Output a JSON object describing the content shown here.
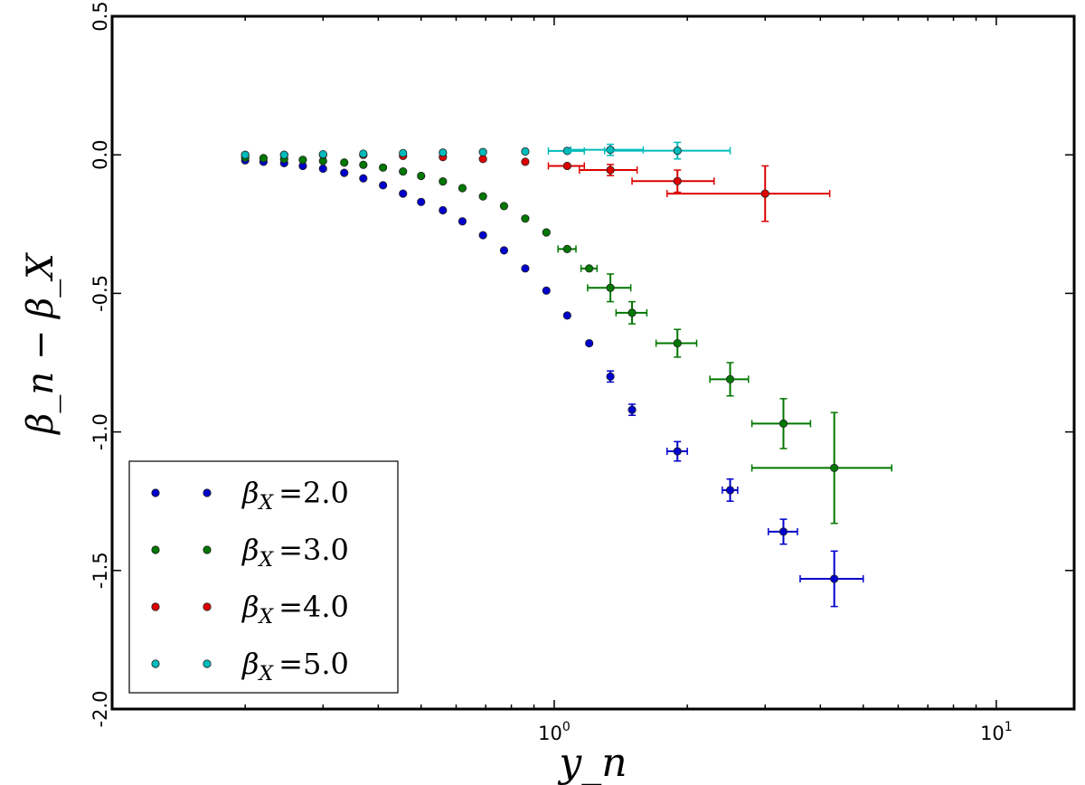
{
  "chart_data": {
    "type": "scatter",
    "title": "",
    "xlabel": "y_n",
    "ylabel": "β_n − β_X",
    "x_scale": "log",
    "xlim": [
      0.1,
      15
    ],
    "ylim": [
      -2.0,
      0.5
    ],
    "y_ticks": [
      "0.5",
      "0.0",
      "-0.5",
      "-1.0",
      "-1.5",
      "-2.0"
    ],
    "y_tick_values": [
      0.5,
      0.0,
      -0.5,
      -1.0,
      -1.5,
      -2.0
    ],
    "x_ticks": [
      {
        "value": 1,
        "base": "10",
        "exp": "0"
      },
      {
        "value": 10,
        "base": "10",
        "exp": "1"
      }
    ],
    "grid": false,
    "legend_position": "lower-left",
    "series": [
      {
        "name": "β_X = 2.0",
        "legend_label": "=2.0",
        "color": "#0000cc",
        "points": [
          {
            "x": 0.2,
            "y": -0.02
          },
          {
            "x": 0.22,
            "y": -0.025
          },
          {
            "x": 0.245,
            "y": -0.03
          },
          {
            "x": 0.27,
            "y": -0.04
          },
          {
            "x": 0.3,
            "y": -0.05
          },
          {
            "x": 0.335,
            "y": -0.065
          },
          {
            "x": 0.37,
            "y": -0.085
          },
          {
            "x": 0.41,
            "y": -0.11
          },
          {
            "x": 0.455,
            "y": -0.14
          },
          {
            "x": 0.5,
            "y": -0.17
          },
          {
            "x": 0.56,
            "y": -0.2
          },
          {
            "x": 0.62,
            "y": -0.24
          },
          {
            "x": 0.69,
            "y": -0.29
          },
          {
            "x": 0.77,
            "y": -0.345
          },
          {
            "x": 0.86,
            "y": -0.41
          },
          {
            "x": 0.96,
            "y": -0.49
          },
          {
            "x": 1.07,
            "y": -0.58
          },
          {
            "x": 1.2,
            "y": -0.68
          },
          {
            "x": 1.34,
            "y": -0.8,
            "yerr": 0.02
          },
          {
            "x": 1.5,
            "y": -0.92,
            "yerr": 0.02
          },
          {
            "x": 1.9,
            "y": -1.07,
            "yerr": 0.035,
            "xerr": 0.1
          },
          {
            "x": 2.5,
            "y": -1.21,
            "yerr": 0.04,
            "xerr": 0.1
          },
          {
            "x": 3.3,
            "y": -1.36,
            "yerr": 0.045,
            "xerr": 0.25
          },
          {
            "x": 4.3,
            "y": -1.53,
            "yerr": 0.1,
            "xerr": 0.7
          }
        ]
      },
      {
        "name": "β_X = 3.0",
        "legend_label": "=3.0",
        "color": "#007700",
        "points": [
          {
            "x": 0.2,
            "y": -0.01
          },
          {
            "x": 0.22,
            "y": -0.012
          },
          {
            "x": 0.245,
            "y": -0.015
          },
          {
            "x": 0.27,
            "y": -0.018
          },
          {
            "x": 0.3,
            "y": -0.022
          },
          {
            "x": 0.335,
            "y": -0.028
          },
          {
            "x": 0.37,
            "y": -0.036
          },
          {
            "x": 0.41,
            "y": -0.046
          },
          {
            "x": 0.455,
            "y": -0.06
          },
          {
            "x": 0.5,
            "y": -0.076
          },
          {
            "x": 0.56,
            "y": -0.096
          },
          {
            "x": 0.62,
            "y": -0.12
          },
          {
            "x": 0.69,
            "y": -0.15
          },
          {
            "x": 0.77,
            "y": -0.185
          },
          {
            "x": 0.86,
            "y": -0.23
          },
          {
            "x": 0.96,
            "y": -0.28
          },
          {
            "x": 1.07,
            "y": -0.34,
            "xerr": 0.05
          },
          {
            "x": 1.2,
            "y": -0.41,
            "xerr": 0.05
          },
          {
            "x": 1.34,
            "y": -0.48,
            "yerr": 0.05,
            "xerr": 0.15
          },
          {
            "x": 1.5,
            "y": -0.57,
            "yerr": 0.04,
            "xerr": 0.12
          },
          {
            "x": 1.9,
            "y": -0.68,
            "yerr": 0.05,
            "xerr": 0.2
          },
          {
            "x": 2.5,
            "y": -0.81,
            "yerr": 0.06,
            "xerr": 0.25
          },
          {
            "x": 3.3,
            "y": -0.97,
            "yerr": 0.09,
            "xerr": 0.5
          },
          {
            "x": 4.3,
            "y": -1.13,
            "yerr": 0.2,
            "xerr": 1.5
          }
        ]
      },
      {
        "name": "β_X = 4.0",
        "legend_label": "=4.0",
        "color": "#dd0000",
        "points": [
          {
            "x": 0.2,
            "y": 0.0
          },
          {
            "x": 0.245,
            "y": 0.0
          },
          {
            "x": 0.3,
            "y": 0.0
          },
          {
            "x": 0.37,
            "y": 0.0
          },
          {
            "x": 0.455,
            "y": -0.004
          },
          {
            "x": 0.56,
            "y": -0.008
          },
          {
            "x": 0.69,
            "y": -0.015
          },
          {
            "x": 0.86,
            "y": -0.025
          },
          {
            "x": 1.07,
            "y": -0.04,
            "xerr": 0.1
          },
          {
            "x": 1.34,
            "y": -0.055,
            "yerr": 0.02,
            "xerr": 0.2
          },
          {
            "x": 1.9,
            "y": -0.095,
            "yerr": 0.04,
            "xerr": 0.4
          },
          {
            "x": 3.0,
            "y": -0.14,
            "yerr": 0.1,
            "xerr": 1.2
          }
        ]
      },
      {
        "name": "β_X = 5.0",
        "legend_label": "=5.0",
        "color": "#00bbbb",
        "points": [
          {
            "x": 0.2,
            "y": 0.0
          },
          {
            "x": 0.245,
            "y": 0.0
          },
          {
            "x": 0.3,
            "y": 0.002
          },
          {
            "x": 0.37,
            "y": 0.004
          },
          {
            "x": 0.455,
            "y": 0.006
          },
          {
            "x": 0.56,
            "y": 0.008
          },
          {
            "x": 0.69,
            "y": 0.01
          },
          {
            "x": 0.86,
            "y": 0.012
          },
          {
            "x": 1.07,
            "y": 0.014,
            "xerr": 0.1
          },
          {
            "x": 1.34,
            "y": 0.018,
            "yerr": 0.02,
            "xerr": 0.25
          },
          {
            "x": 1.9,
            "y": 0.015,
            "yerr": 0.03,
            "xerr": 0.6
          }
        ]
      }
    ]
  }
}
